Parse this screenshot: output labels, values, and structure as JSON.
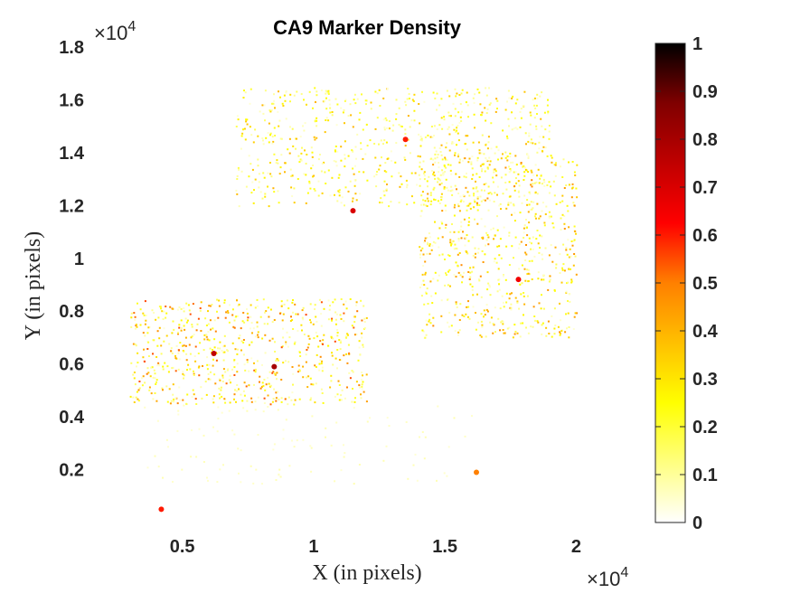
{
  "chart_data": {
    "type": "heatmap",
    "title": "CA9 Marker Density",
    "xlabel": "X (in pixels)",
    "ylabel": "Y (in pixels)",
    "x_multiplier": "×10",
    "x_multiplier_exp": "4",
    "y_multiplier": "×10",
    "y_multiplier_exp": "4",
    "xlim": [
      1500,
      22500
    ],
    "ylim": [
      0,
      18000
    ],
    "x_ticks": [
      5000,
      10000,
      15000,
      20000
    ],
    "x_tick_labels": [
      "0.5",
      "1",
      "1.5",
      "2"
    ],
    "y_ticks": [
      2000,
      4000,
      6000,
      8000,
      10000,
      12000,
      14000,
      16000,
      18000
    ],
    "y_tick_labels": [
      "0.2",
      "0.4",
      "0.6",
      "0.8",
      "1",
      "1.2",
      "1.4",
      "1.6",
      "1.8"
    ],
    "colorbar": {
      "colormap": "hot (reversed)",
      "range": [
        0,
        1
      ],
      "ticks": [
        0,
        0.1,
        0.2,
        0.3,
        0.4,
        0.5,
        0.6,
        0.7,
        0.8,
        0.9,
        1
      ],
      "tick_labels": [
        "0",
        "0.1",
        "0.2",
        "0.3",
        "0.4",
        "0.5",
        "0.6",
        "0.7",
        "0.8",
        "0.9",
        "1"
      ],
      "colors": [
        "#ffffff",
        "#ffff80",
        "#ffff00",
        "#ffc000",
        "#ff8000",
        "#ff0000",
        "#c00000",
        "#800000",
        "#000000"
      ]
    },
    "density_regions": [
      {
        "region": "upper-center band",
        "x": [
          7000,
          19000
        ],
        "y": [
          12000,
          16500
        ],
        "level": 0.25
      },
      {
        "region": "right arc",
        "x": [
          14000,
          20000
        ],
        "y": [
          7000,
          14000
        ],
        "level": 0.3
      },
      {
        "region": "lower-left cluster",
        "x": [
          3000,
          12000
        ],
        "y": [
          4500,
          8500
        ],
        "level": 0.35
      },
      {
        "region": "lower diffuse tail",
        "x": [
          3500,
          16000
        ],
        "y": [
          1500,
          4500
        ],
        "level": 0.05
      }
    ],
    "hotspots": [
      {
        "x": 6200,
        "y": 6400,
        "value": 0.75
      },
      {
        "x": 8500,
        "y": 5900,
        "value": 0.8
      },
      {
        "x": 11500,
        "y": 11800,
        "value": 0.7
      },
      {
        "x": 13500,
        "y": 14500,
        "value": 0.6
      },
      {
        "x": 4200,
        "y": 500,
        "value": 0.6
      },
      {
        "x": 16200,
        "y": 1900,
        "value": 0.5
      },
      {
        "x": 17800,
        "y": 9200,
        "value": 0.65
      }
    ]
  }
}
